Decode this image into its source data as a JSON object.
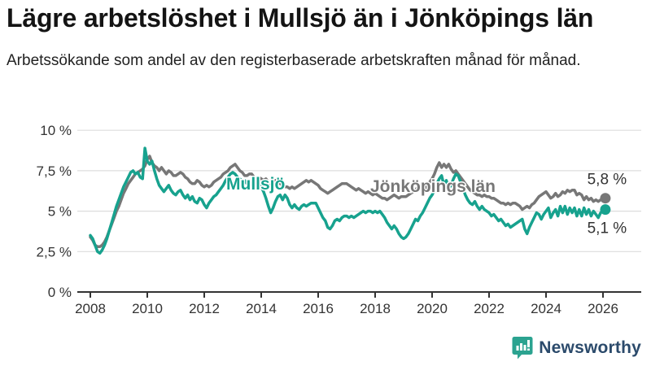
{
  "header": {
    "title": "Lägre arbetslöshet i Mullsjö än i Jönköpings län",
    "subtitle": "Arbetssökande som andel av den registerbaserade arbetskraften månad för månad."
  },
  "branding": {
    "name": "Newsworthy",
    "logo_icon": "newsworthy-bar-chart-bubble-icon",
    "logo_teal": "#2ba390",
    "logo_navy": "#2b4a6b"
  },
  "colors": {
    "grid": "#dddddd",
    "axis": "#333333",
    "tick_text": "#333333",
    "end_label_text": "#333333"
  },
  "chart_data": {
    "type": "line",
    "title": "Lägre arbetslöshet i Mullsjö än i Jönköpings län",
    "subtitle": "Arbetssökande som andel av den registerbaserade arbetskraften månad för månad.",
    "x_start_year": 2008,
    "x_points_per_year": 12,
    "x_ticks": [
      2008,
      2010,
      2012,
      2014,
      2016,
      2018,
      2020,
      2022,
      2024,
      2026
    ],
    "y_ticks": [
      {
        "value": 0,
        "label": "0 %"
      },
      {
        "value": 2.5,
        "label": "2,5 %"
      },
      {
        "value": 5,
        "label": "5 %"
      },
      {
        "value": 7.5,
        "label": "7,5 %"
      },
      {
        "value": 10,
        "label": "10 %"
      }
    ],
    "ylim": [
      0,
      10
    ],
    "grid": "horizontal",
    "legend_position": "inline-labels",
    "series": [
      {
        "name": "Jönköpings län",
        "color": "#777777",
        "end_label": "5,8 %",
        "end_value": 5.8,
        "values": [
          3.4,
          3.2,
          2.9,
          2.8,
          2.8,
          2.9,
          3.1,
          3.4,
          3.8,
          4.2,
          4.6,
          5.0,
          5.3,
          5.7,
          6.1,
          6.4,
          6.7,
          6.9,
          7.1,
          7.3,
          7.4,
          7.5,
          7.6,
          7.8,
          8.2,
          8.4,
          8.0,
          7.8,
          7.7,
          7.5,
          7.7,
          7.5,
          7.3,
          7.5,
          7.4,
          7.2,
          7.2,
          7.3,
          7.4,
          7.3,
          7.1,
          7.0,
          6.8,
          6.7,
          6.7,
          6.9,
          6.8,
          6.6,
          6.5,
          6.6,
          6.5,
          6.6,
          6.8,
          6.9,
          7.0,
          7.1,
          7.3,
          7.4,
          7.5,
          7.7,
          7.8,
          7.9,
          7.7,
          7.5,
          7.4,
          7.2,
          7.2,
          7.3,
          7.3,
          7.1,
          7.0,
          7.1,
          7.0,
          6.9,
          7.0,
          6.8,
          6.7,
          6.8,
          6.9,
          6.9,
          6.7,
          6.6,
          6.5,
          6.5,
          6.4,
          6.5,
          6.4,
          6.5,
          6.6,
          6.7,
          6.8,
          6.9,
          6.8,
          6.9,
          6.8,
          6.7,
          6.6,
          6.4,
          6.3,
          6.2,
          6.1,
          6.2,
          6.3,
          6.4,
          6.5,
          6.6,
          6.7,
          6.7,
          6.7,
          6.6,
          6.5,
          6.4,
          6.3,
          6.4,
          6.3,
          6.2,
          6.1,
          6.2,
          6.1,
          6.0,
          6.1,
          6.0,
          5.9,
          5.8,
          5.8,
          5.7,
          5.8,
          5.9,
          6.0,
          5.9,
          5.8,
          5.9,
          5.9,
          5.9,
          6.0,
          6.1,
          6.2,
          6.3,
          6.5,
          6.4,
          6.3,
          6.4,
          6.6,
          6.8,
          7.0,
          7.3,
          7.7,
          8.0,
          7.7,
          7.9,
          7.7,
          7.9,
          7.6,
          7.4,
          7.5,
          7.3,
          7.1,
          6.9,
          6.7,
          6.5,
          6.3,
          6.2,
          6.1,
          6.0,
          6.0,
          5.9,
          6.0,
          5.9,
          5.9,
          5.8,
          5.8,
          5.7,
          5.6,
          5.5,
          5.5,
          5.4,
          5.5,
          5.4,
          5.5,
          5.5,
          5.4,
          5.3,
          5.1,
          5.2,
          5.3,
          5.2,
          5.4,
          5.5,
          5.7,
          5.9,
          6.0,
          6.1,
          6.2,
          6.0,
          5.8,
          5.9,
          6.1,
          5.9,
          6.0,
          6.2,
          6.1,
          6.3,
          6.2,
          6.3,
          6.3,
          6.0,
          6.1,
          6.0,
          5.7,
          5.9,
          5.7,
          5.8,
          5.6,
          5.7,
          5.6,
          5.7,
          5.7,
          5.8
        ]
      },
      {
        "name": "Mullsjö",
        "color": "#17a28e",
        "end_label": "5,1 %",
        "end_value": 5.1,
        "values": [
          3.5,
          3.3,
          2.9,
          2.5,
          2.4,
          2.6,
          2.9,
          3.3,
          3.8,
          4.3,
          4.8,
          5.3,
          5.7,
          6.1,
          6.5,
          6.8,
          7.1,
          7.4,
          7.5,
          7.3,
          7.4,
          7.1,
          7.0,
          8.9,
          8.1,
          7.9,
          8.1,
          7.5,
          7.0,
          6.6,
          6.4,
          6.2,
          6.4,
          6.6,
          6.3,
          6.1,
          6.0,
          6.2,
          6.3,
          6.0,
          5.8,
          6.0,
          5.7,
          5.9,
          5.6,
          5.5,
          5.8,
          5.7,
          5.4,
          5.2,
          5.5,
          5.7,
          5.9,
          6.0,
          6.2,
          6.4,
          6.6,
          6.9,
          7.1,
          7.3,
          7.4,
          7.3,
          7.1,
          7.0,
          6.8,
          6.9,
          6.7,
          6.8,
          6.6,
          6.7,
          6.8,
          6.6,
          6.5,
          6.2,
          5.8,
          5.3,
          4.9,
          5.2,
          5.6,
          5.9,
          6.0,
          5.7,
          6.0,
          5.8,
          5.4,
          5.2,
          5.4,
          5.2,
          5.1,
          5.3,
          5.4,
          5.3,
          5.4,
          5.5,
          5.5,
          5.5,
          5.2,
          4.9,
          4.6,
          4.4,
          4.0,
          3.9,
          4.1,
          4.4,
          4.5,
          4.4,
          4.6,
          4.7,
          4.7,
          4.6,
          4.7,
          4.6,
          4.7,
          4.8,
          4.9,
          5.0,
          4.9,
          5.0,
          5.0,
          4.9,
          5.0,
          4.9,
          5.0,
          4.8,
          4.6,
          4.3,
          4.1,
          3.9,
          4.1,
          3.9,
          3.6,
          3.4,
          3.3,
          3.4,
          3.6,
          3.9,
          4.2,
          4.5,
          4.4,
          4.7,
          4.9,
          5.2,
          5.5,
          5.8,
          6.0,
          6.3,
          6.7,
          7.0,
          7.2,
          6.6,
          6.9,
          6.4,
          6.6,
          7.0,
          7.3,
          7.2,
          6.8,
          6.4,
          6.0,
          5.7,
          5.5,
          5.4,
          5.6,
          5.3,
          5.1,
          5.3,
          5.1,
          5.0,
          4.9,
          4.7,
          4.8,
          4.6,
          4.4,
          4.5,
          4.3,
          4.1,
          4.2,
          4.0,
          4.1,
          4.2,
          4.3,
          4.4,
          4.5,
          3.9,
          3.6,
          4.0,
          4.3,
          4.6,
          4.9,
          4.8,
          4.5,
          4.8,
          5.0,
          5.2,
          4.6,
          4.9,
          5.1,
          4.7,
          5.3,
          4.9,
          5.3,
          4.8,
          5.2,
          4.9,
          5.2,
          4.7,
          5.1,
          4.7,
          5.2,
          4.8,
          5.1,
          4.7,
          5.0,
          4.8,
          4.6,
          4.9,
          5.0,
          5.1
        ]
      }
    ]
  }
}
